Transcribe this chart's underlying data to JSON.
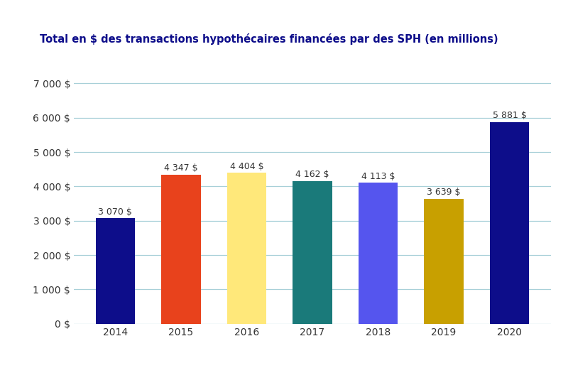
{
  "title": "Total en $ des transactions hypothécaires financées par des SPH (en millions)",
  "categories": [
    "2014",
    "2015",
    "2016",
    "2017",
    "2018",
    "2019",
    "2020"
  ],
  "values": [
    3070,
    4347,
    4404,
    4162,
    4113,
    3639,
    5881
  ],
  "bar_colors": [
    "#0D0D8A",
    "#E8421C",
    "#FFE87A",
    "#1A7A7A",
    "#5555EE",
    "#C8A000",
    "#0D0D8A"
  ],
  "title_color": "#0D0D8A",
  "title_fontsize": 10.5,
  "label_fontsize": 9,
  "tick_fontsize": 10,
  "ytick_labels": [
    "0 $",
    "1 000 $",
    "2 000 $",
    "3 000 $",
    "4 000 $",
    "5 000 $",
    "6 000 $",
    "7 000 $"
  ],
  "ytick_values": [
    0,
    1000,
    2000,
    3000,
    4000,
    5000,
    6000,
    7000
  ],
  "ylim": [
    0,
    7500
  ],
  "grid_color": "#A8D0D8",
  "background_color": "#FFFFFF",
  "bar_label_color": "#333333",
  "annotation_values": [
    "3 070 $",
    "4 347 $",
    "4 404 $",
    "4 162 $",
    "4 113 $",
    "3 639 $",
    "5 881 $"
  ]
}
